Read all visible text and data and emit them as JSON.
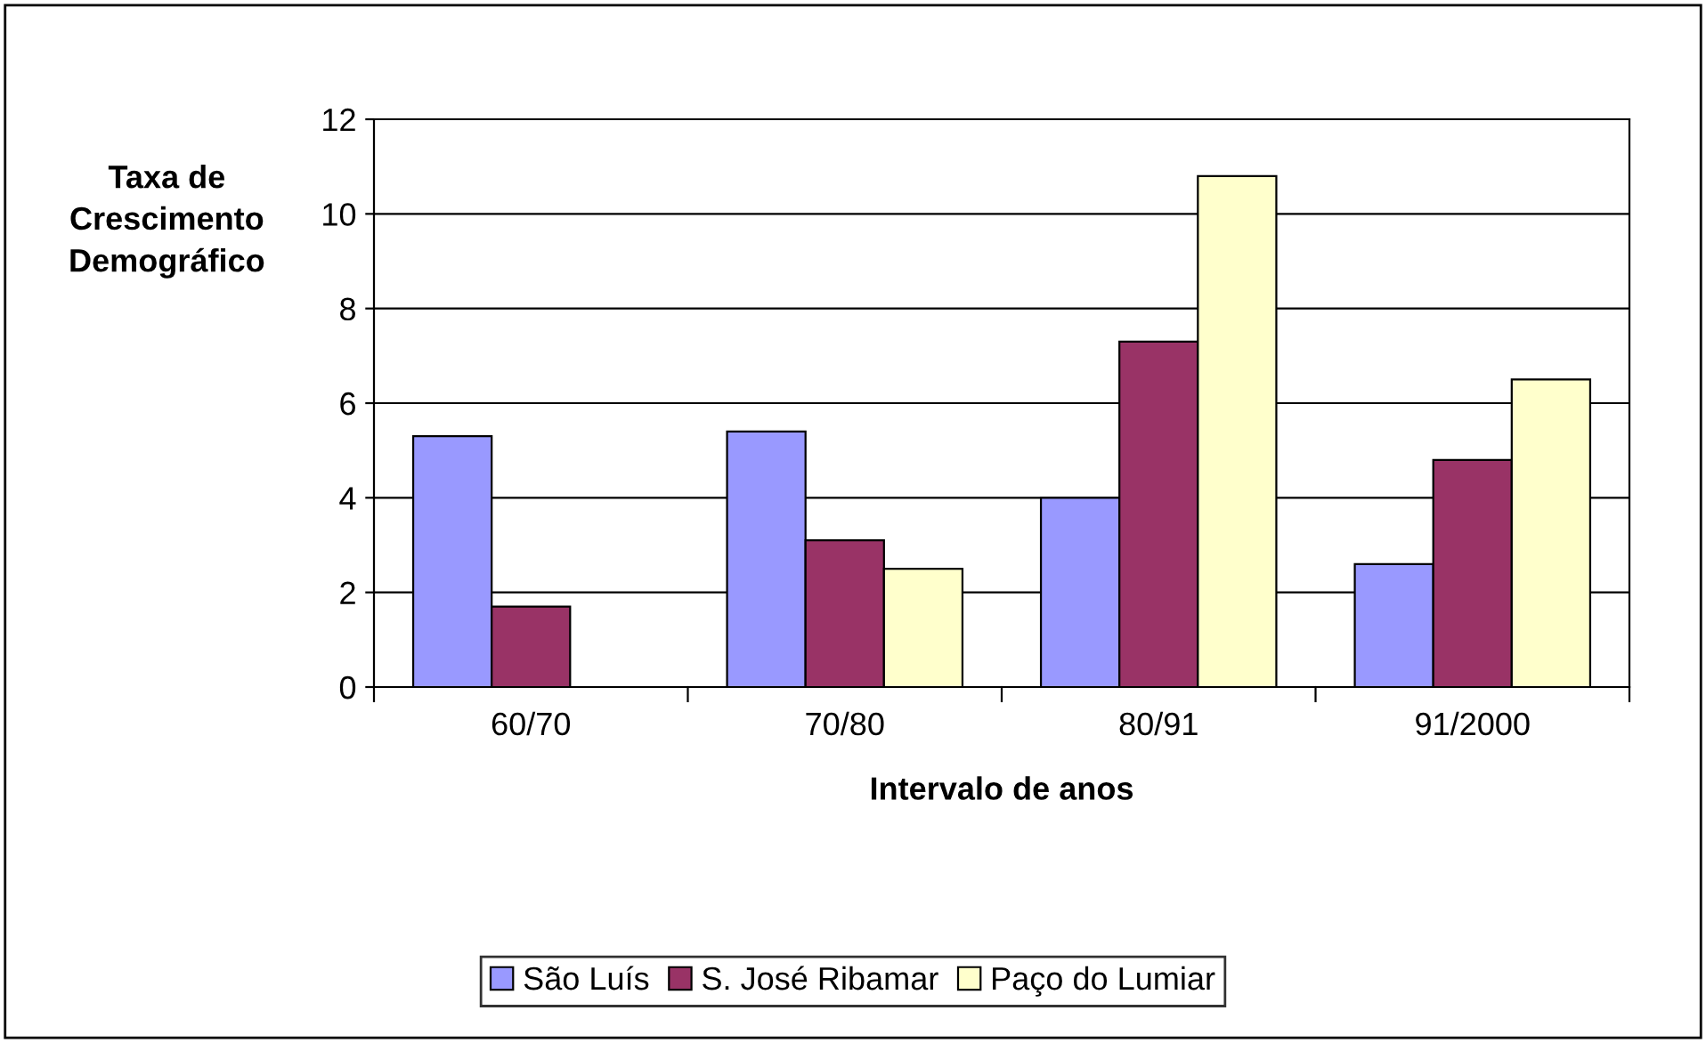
{
  "chart_data": {
    "type": "bar",
    "xlabel": "Intervalo de anos",
    "ylabel": "Taxa de\nCrescimento\nDemográfico",
    "categories": [
      "60/70",
      "70/80",
      "80/91",
      "91/2000"
    ],
    "series": [
      {
        "name": "São Luís",
        "color": "#9999ff",
        "values": [
          5.3,
          5.4,
          4.0,
          2.6
        ]
      },
      {
        "name": "S. José Ribamar",
        "color": "#993366",
        "values": [
          1.7,
          3.1,
          7.3,
          4.8
        ]
      },
      {
        "name": "Paço do Lumiar",
        "color": "#ffffcc",
        "values": [
          null,
          2.5,
          10.8,
          6.5
        ]
      }
    ],
    "ylim": [
      0,
      12
    ],
    "yticks": [
      0,
      2,
      4,
      6,
      8,
      10,
      12
    ],
    "grid": "y",
    "legend": "bottom"
  }
}
